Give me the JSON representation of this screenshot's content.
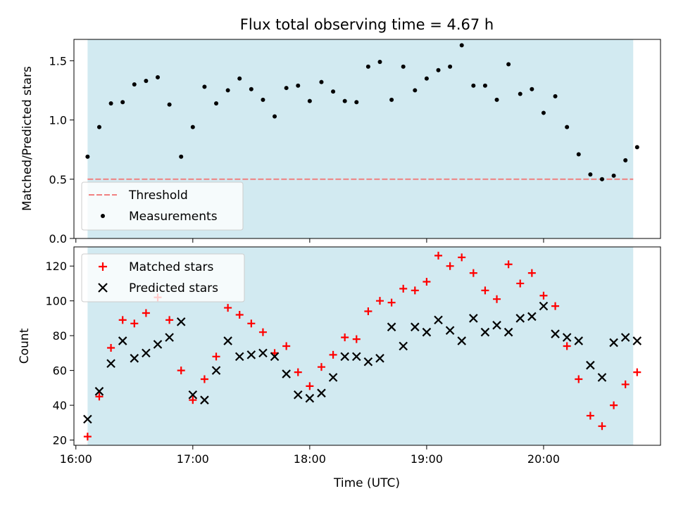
{
  "chart_data": [
    {
      "type": "scatter",
      "title": "Flux total observing time = 4.67 h",
      "ylabel": "Matched/Predicted stars",
      "xlabel": "",
      "xlim": [
        "15:59",
        "21:00"
      ],
      "ylim": [
        0,
        1.68
      ],
      "yticks": [
        0.0,
        0.5,
        1.0,
        1.5
      ],
      "ytick_labels": [
        "0.0",
        "0.5",
        "1.0",
        "1.5"
      ],
      "xticks": [
        "16:00",
        "17:00",
        "18:00",
        "19:00",
        "20:00"
      ],
      "shaded_span": [
        "16:06",
        "20:46"
      ],
      "shade_color": "#add8e6",
      "threshold": {
        "name": "Threshold",
        "value": 0.5,
        "color": "#f08080",
        "style": "dashed"
      },
      "series": [
        {
          "name": "Measurements",
          "color": "#000000",
          "marker": "dot",
          "x": [
            "16:06",
            "16:12",
            "16:18",
            "16:24",
            "16:30",
            "16:36",
            "16:42",
            "16:48",
            "16:54",
            "17:00",
            "17:06",
            "17:12",
            "17:18",
            "17:24",
            "17:30",
            "17:36",
            "17:42",
            "17:48",
            "17:54",
            "18:00",
            "18:06",
            "18:12",
            "18:18",
            "18:24",
            "18:30",
            "18:36",
            "18:42",
            "18:48",
            "18:54",
            "19:00",
            "19:06",
            "19:12",
            "19:18",
            "19:24",
            "19:30",
            "19:36",
            "19:42",
            "19:48",
            "19:54",
            "20:00",
            "20:06",
            "20:12",
            "20:18",
            "20:24",
            "20:30",
            "20:36",
            "20:42",
            "20:48"
          ],
          "values": [
            0.69,
            0.94,
            1.14,
            1.15,
            1.3,
            1.33,
            1.36,
            1.13,
            0.69,
            0.94,
            1.28,
            1.14,
            1.25,
            1.35,
            1.26,
            1.17,
            1.03,
            1.27,
            1.29,
            1.16,
            1.32,
            1.24,
            1.16,
            1.15,
            1.45,
            1.49,
            1.17,
            1.45,
            1.25,
            1.35,
            1.42,
            1.45,
            1.63,
            1.29,
            1.29,
            1.17,
            1.47,
            1.22,
            1.26,
            1.06,
            1.2,
            0.94,
            0.71,
            0.54,
            0.5,
            0.53,
            0.66,
            0.77
          ]
        }
      ]
    },
    {
      "type": "scatter",
      "title": "",
      "xlabel": "Time (UTC)",
      "ylabel": "Count",
      "xlim": [
        "15:59",
        "21:00"
      ],
      "ylim": [
        17,
        131
      ],
      "yticks": [
        20,
        40,
        60,
        80,
        100,
        120
      ],
      "ytick_labels": [
        "20",
        "40",
        "60",
        "80",
        "100",
        "120"
      ],
      "xticks": [
        "16:00",
        "17:00",
        "18:00",
        "19:00",
        "20:00"
      ],
      "xtick_labels": [
        "16:00",
        "17:00",
        "18:00",
        "19:00",
        "20:00"
      ],
      "shaded_span": [
        "16:06",
        "20:46"
      ],
      "shade_color": "#add8e6",
      "series": [
        {
          "name": "Matched stars",
          "color": "#ff0000",
          "marker": "plus",
          "x": [
            "16:06",
            "16:12",
            "16:18",
            "16:24",
            "16:30",
            "16:36",
            "16:42",
            "16:48",
            "16:54",
            "17:00",
            "17:06",
            "17:12",
            "17:18",
            "17:24",
            "17:30",
            "17:36",
            "17:42",
            "17:48",
            "17:54",
            "18:00",
            "18:06",
            "18:12",
            "18:18",
            "18:24",
            "18:30",
            "18:36",
            "18:42",
            "18:48",
            "18:54",
            "19:00",
            "19:06",
            "19:12",
            "19:18",
            "19:24",
            "19:30",
            "19:36",
            "19:42",
            "19:48",
            "19:54",
            "20:00",
            "20:06",
            "20:12",
            "20:18",
            "20:24",
            "20:30",
            "20:36",
            "20:42",
            "20:48"
          ],
          "values": [
            22,
            45,
            73,
            89,
            87,
            93,
            102,
            89,
            60,
            43,
            55,
            68,
            96,
            92,
            87,
            82,
            70,
            74,
            59,
            51,
            62,
            69,
            79,
            78,
            94,
            100,
            99,
            107,
            106,
            111,
            126,
            120,
            125,
            116,
            106,
            101,
            121,
            110,
            116,
            103,
            97,
            74,
            55,
            34,
            28,
            40,
            52,
            59
          ]
        },
        {
          "name": "Predicted stars",
          "color": "#000000",
          "marker": "x",
          "x": [
            "16:06",
            "16:12",
            "16:18",
            "16:24",
            "16:30",
            "16:36",
            "16:42",
            "16:48",
            "16:54",
            "17:00",
            "17:06",
            "17:12",
            "17:18",
            "17:24",
            "17:30",
            "17:36",
            "17:42",
            "17:48",
            "17:54",
            "18:00",
            "18:06",
            "18:12",
            "18:18",
            "18:24",
            "18:30",
            "18:36",
            "18:42",
            "18:48",
            "18:54",
            "19:00",
            "19:06",
            "19:12",
            "19:18",
            "19:24",
            "19:30",
            "19:36",
            "19:42",
            "19:48",
            "19:54",
            "20:00",
            "20:06",
            "20:12",
            "20:18",
            "20:24",
            "20:30",
            "20:36",
            "20:42",
            "20:48"
          ],
          "values": [
            32,
            48,
            64,
            77,
            67,
            70,
            75,
            79,
            88,
            46,
            43,
            60,
            77,
            68,
            69,
            70,
            68,
            58,
            46,
            44,
            47,
            56,
            68,
            68,
            65,
            67,
            85,
            74,
            85,
            82,
            89,
            83,
            77,
            90,
            82,
            86,
            82,
            90,
            91,
            97,
            81,
            79,
            77,
            63,
            56,
            76,
            79,
            77
          ]
        }
      ]
    }
  ]
}
